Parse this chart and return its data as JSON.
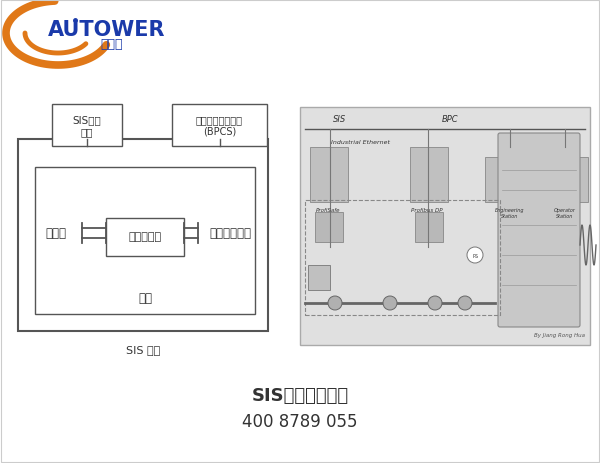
{
  "bg_color": "#ffffff",
  "title1": "SIS安全仪表系统",
  "title2": "400 8789 055",
  "title_color": "#333333",
  "title_fontsize": 13,
  "phone_fontsize": 12,
  "logo_color_blue": "#1a3aaa",
  "logo_color_orange": "#e07818",
  "diagram": {
    "box1_label": "SIS用户\n接口",
    "box2_label": "基本过程控制系统\n(BPCS)",
    "sensor_label": "传感器",
    "logic_box_label": "逻辑控制器",
    "final_label": "最终控制元件",
    "logic_label": "逻辑",
    "caption": "SIS 组成",
    "box_line_color": "#555555",
    "text_color": "#333333",
    "font_color": "#333333"
  },
  "photo_bg": "#d8d8d8",
  "photo_border": "#aaaaaa"
}
